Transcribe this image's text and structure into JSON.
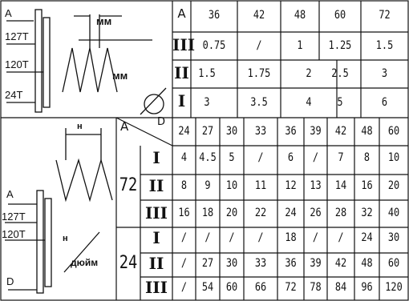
{
  "inch_gear_panel": {
    "gear_labels": [
      "A",
      "127T",
      "120T",
      "24T"
    ],
    "unit_label": "мм",
    "unit_label_2": "мм"
  },
  "metric_panel": {
    "gear_labels": [
      "A",
      "127T",
      "120T",
      "D"
    ],
    "unit_label": "н",
    "unit_label_2": "н",
    "unit_label_3": "дюйм"
  },
  "metric_table": {
    "header": "A",
    "header_values": [
      "36",
      "42",
      "48",
      "60",
      "72"
    ],
    "rows": [
      {
        "roman": "III",
        "values": [
          "0.75",
          "/",
          "1",
          "1.25",
          "1.5"
        ]
      },
      {
        "roman": "II",
        "values": [
          "1.5",
          "1.75",
          "2",
          "2.5",
          "3"
        ]
      },
      {
        "roman": "I",
        "values": [
          "3",
          "3.5",
          "4",
          "5",
          "6"
        ]
      }
    ]
  },
  "inch_table": {
    "header_a": "A",
    "header_d": "D",
    "header_values": [
      "24",
      "27",
      "30",
      "33",
      "36",
      "39",
      "42",
      "48",
      "60"
    ],
    "groups": [
      {
        "d_value": "72",
        "rows": [
          {
            "roman": "I",
            "values": [
              "4",
              "4.5",
              "5",
              "/",
              "6",
              "/",
              "7",
              "8",
              "10"
            ]
          },
          {
            "roman": "II",
            "values": [
              "8",
              "9",
              "10",
              "11",
              "12",
              "13",
              "14",
              "16",
              "20"
            ]
          },
          {
            "roman": "III",
            "values": [
              "16",
              "18",
              "20",
              "22",
              "24",
              "26",
              "28",
              "32",
              "40"
            ]
          }
        ]
      },
      {
        "d_value": "24",
        "rows": [
          {
            "roman": "I",
            "values": [
              "/",
              "/",
              "/",
              "/",
              "18",
              "/",
              "/",
              "24",
              "30"
            ]
          },
          {
            "roman": "II",
            "values": [
              "/",
              "27",
              "30",
              "33",
              "36",
              "39",
              "42",
              "48",
              "60"
            ]
          },
          {
            "roman": "III",
            "values": [
              "/",
              "54",
              "60",
              "66",
              "72",
              "78",
              "84",
              "96",
              "120"
            ]
          }
        ]
      }
    ]
  },
  "colors": {
    "ink": "#111111",
    "background": "#ffffff"
  }
}
